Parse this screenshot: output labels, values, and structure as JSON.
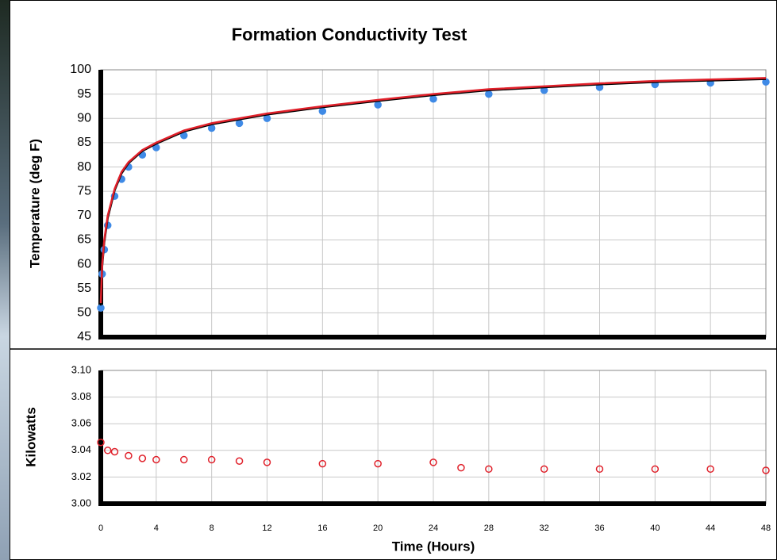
{
  "chart_data": [
    {
      "type": "line",
      "title": "Formation Conductivity  Test",
      "y_label": "Temperature (deg F)",
      "x": [
        0,
        0.1,
        0.25,
        0.5,
        1,
        1.5,
        2,
        3,
        4,
        6,
        8,
        10,
        12,
        16,
        20,
        24,
        28,
        32,
        36,
        40,
        44,
        48
      ],
      "series": [
        {
          "color": "#3f8ae6",
          "style": "markers",
          "values": [
            51,
            58,
            63,
            68,
            74,
            77.5,
            80,
            82.5,
            84,
            86.5,
            88,
            89,
            90,
            91.5,
            92.8,
            94,
            95,
            95.8,
            96.4,
            97,
            97.3,
            97.5
          ]
        },
        {
          "color": "#000000",
          "style": "line",
          "values": [
            51.5,
            59.5,
            64.5,
            69.5,
            75.2,
            78.7,
            80.8,
            83.3,
            84.8,
            87.3,
            88.8,
            89.8,
            90.8,
            92.3,
            93.6,
            94.8,
            95.8,
            96.4,
            97,
            97.5,
            97.8,
            98.1
          ]
        },
        {
          "color": "#e0202a",
          "style": "line",
          "values": [
            52,
            60,
            65,
            70,
            75.5,
            79,
            81,
            83.5,
            85,
            87.5,
            89,
            90,
            91,
            92.5,
            93.8,
            95,
            96,
            96.6,
            97.2,
            97.7,
            98,
            98.3
          ]
        }
      ],
      "xlim": [
        0,
        48
      ],
      "xticks": [
        0,
        4,
        8,
        12,
        16,
        20,
        24,
        28,
        32,
        36,
        40,
        44,
        48
      ],
      "ylim": [
        45,
        100
      ],
      "yticks": [
        45,
        50,
        55,
        60,
        65,
        70,
        75,
        80,
        85,
        90,
        95,
        100
      ],
      "grid": true
    },
    {
      "type": "scatter",
      "y_label": "Kilowatts",
      "x_label": "Time (Hours)",
      "x": [
        0,
        0.5,
        1,
        2,
        3,
        4,
        6,
        8,
        10,
        12,
        16,
        20,
        24,
        26,
        28,
        32,
        36,
        40,
        44,
        48
      ],
      "series": [
        {
          "color": "#e0202a",
          "style": "markers",
          "values": [
            3.046,
            3.04,
            3.039,
            3.036,
            3.034,
            3.033,
            3.033,
            3.033,
            3.032,
            3.031,
            3.03,
            3.03,
            3.031,
            3.027,
            3.026,
            3.026,
            3.026,
            3.026,
            3.026,
            3.025
          ]
        }
      ],
      "xlim": [
        0,
        48
      ],
      "xticks": [
        0,
        4,
        8,
        12,
        16,
        20,
        24,
        28,
        32,
        36,
        40,
        44,
        48
      ],
      "ylim": [
        3.0,
        3.1
      ],
      "yticks": [
        {
          "value": 3.0,
          "label": "3.00"
        },
        3.02,
        3.04,
        3.06,
        3.08,
        {
          "value": 3.1,
          "label": "3.10"
        }
      ],
      "grid": true
    }
  ]
}
